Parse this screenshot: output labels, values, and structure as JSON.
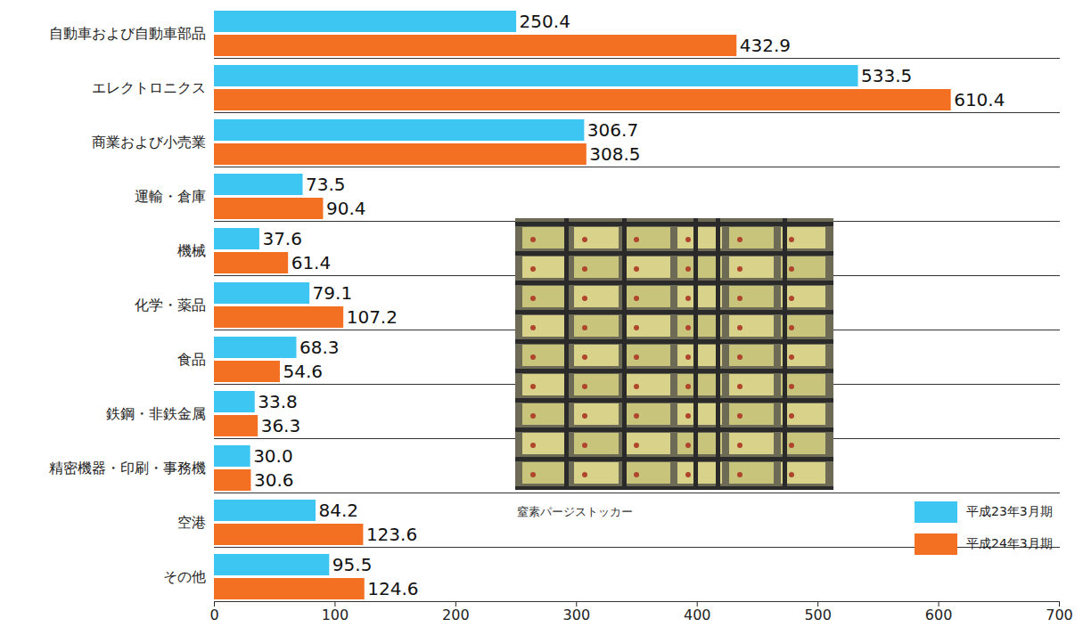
{
  "chart_data": {
    "type": "bar",
    "orientation": "horizontal",
    "categories": [
      "自動車および自動車部品",
      "エレクトロニクス",
      "商業および小売業",
      "運輸・倉庫",
      "機械",
      "化学・薬品",
      "食品",
      "鉄鋼・非鉄金属",
      "精密機器・印刷・事務機",
      "空港",
      "その他"
    ],
    "series": [
      {
        "name": "平成23年3月期",
        "color": "#3ec6f2",
        "values": [
          250.4,
          533.5,
          306.7,
          73.5,
          37.6,
          79.1,
          68.3,
          33.8,
          30.0,
          84.2,
          95.5
        ],
        "value_labels": [
          "250.4",
          "533.5",
          "306.7",
          "73.5",
          "37.6",
          "79.1",
          "68.3",
          "33.8",
          "30.0",
          "84.2",
          "95.5"
        ]
      },
      {
        "name": "平成24年3月期",
        "color": "#f36f21",
        "values": [
          432.9,
          610.4,
          308.5,
          90.4,
          61.4,
          107.2,
          54.6,
          36.3,
          30.6,
          123.6,
          124.6
        ],
        "value_labels": [
          "432.9",
          "610.4",
          "308.5",
          "90.4",
          "61.4",
          "107.2",
          "54.6",
          "36.3",
          "30.6",
          "123.6",
          "124.6"
        ]
      }
    ],
    "xlim": [
      0,
      700
    ],
    "xticks": [
      0,
      100,
      200,
      300,
      400,
      500,
      600,
      700
    ],
    "data_labels": true,
    "grid": false,
    "legend": "lower right",
    "annotations": [
      "窒素パージストッカー"
    ]
  }
}
